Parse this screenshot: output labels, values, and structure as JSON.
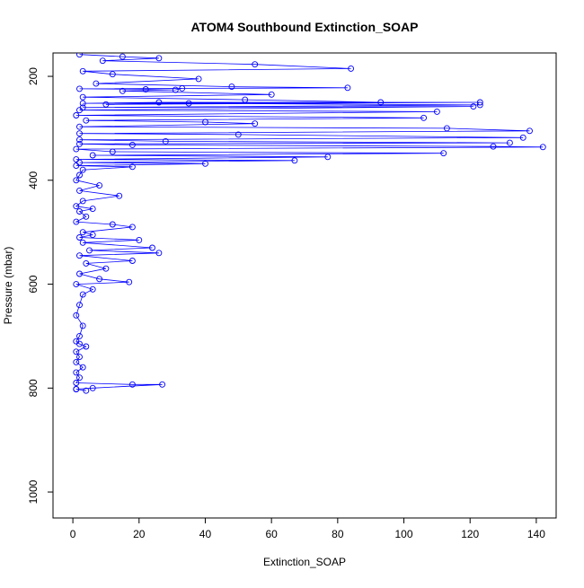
{
  "chart_data": {
    "type": "scatter",
    "title": "ATOM4 Southbound Extinction_SOAP",
    "xlabel": "Extinction_SOAP",
    "ylabel": "Pressure (mbar)",
    "xlim": [
      -6,
      146
    ],
    "ylim": [
      1050,
      155
    ],
    "y_reversed": true,
    "x_ticks": [
      "0",
      "20",
      "40",
      "60",
      "80",
      "100",
      "120",
      "140"
    ],
    "y_ticks": [
      "200",
      "400",
      "600",
      "800",
      "1000"
    ],
    "grid": false,
    "legend": "none",
    "series_color": "#0000ff",
    "marker": "open-circle",
    "connected": true,
    "series": [
      {
        "x": [
          2,
          15,
          26,
          9,
          55,
          84,
          3,
          12,
          38,
          7,
          48,
          83,
          2,
          22,
          33,
          31,
          15,
          60,
          3,
          52,
          93,
          3,
          26,
          123,
          10,
          35,
          123,
          3,
          121,
          2,
          110,
          1,
          106,
          4,
          40,
          55,
          2,
          113,
          138,
          2,
          50,
          136,
          2,
          28,
          132,
          2,
          18,
          127,
          142,
          1,
          12,
          112,
          6,
          77,
          1,
          67,
          2,
          40,
          1,
          18,
          3,
          2,
          1,
          8,
          2,
          14,
          3,
          1,
          6,
          2,
          4,
          1,
          12,
          18,
          3,
          6,
          2,
          20,
          3,
          24,
          5,
          26,
          2,
          18,
          4,
          10,
          2,
          8,
          17,
          1,
          6,
          3,
          2,
          1,
          3,
          2,
          1,
          2,
          4,
          1,
          2,
          1,
          3,
          1,
          2,
          1,
          18,
          27,
          6,
          1,
          4,
          1
        ],
        "y": [
          158,
          162,
          165,
          170,
          177,
          185,
          190,
          196,
          205,
          214,
          220,
          222,
          224,
          225,
          223,
          226,
          228,
          235,
          240,
          245,
          250,
          252,
          250,
          250,
          254,
          252,
          255,
          260,
          258,
          265,
          268,
          275,
          280,
          285,
          288,
          291,
          297,
          300,
          305,
          310,
          312,
          318,
          322,
          325,
          328,
          330,
          332,
          335,
          336,
          340,
          345,
          348,
          352,
          355,
          360,
          362,
          366,
          368,
          372,
          374,
          380,
          390,
          400,
          410,
          420,
          430,
          440,
          450,
          455,
          460,
          470,
          480,
          485,
          490,
          500,
          505,
          510,
          515,
          520,
          530,
          535,
          540,
          545,
          555,
          560,
          570,
          580,
          590,
          596,
          600,
          610,
          620,
          640,
          660,
          680,
          700,
          710,
          715,
          720,
          730,
          740,
          750,
          760,
          770,
          780,
          790,
          793,
          793,
          800,
          802,
          805,
          802
        ]
      }
    ]
  }
}
